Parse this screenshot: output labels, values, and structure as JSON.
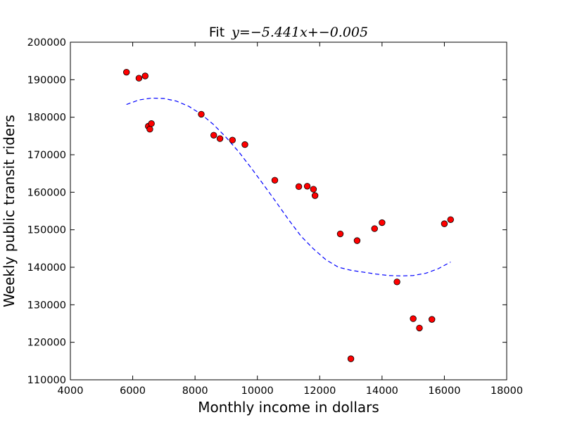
{
  "chart_data": {
    "type": "scatter",
    "title_prefix": "Fit",
    "title_math": "y=−5.441x+−0.005",
    "xlabel": "Monthly income in dollars",
    "ylabel": "Weekly public transit riders",
    "xlim": [
      4000,
      18000
    ],
    "ylim": [
      110000,
      200000
    ],
    "x_ticks": [
      4000,
      6000,
      8000,
      10000,
      12000,
      14000,
      16000,
      18000
    ],
    "y_ticks": [
      110000,
      120000,
      130000,
      140000,
      150000,
      160000,
      170000,
      180000,
      190000,
      200000
    ],
    "grid": false,
    "points": [
      {
        "x": 5800,
        "y": 192000
      },
      {
        "x": 6200,
        "y": 190400
      },
      {
        "x": 6400,
        "y": 191000
      },
      {
        "x": 6500,
        "y": 177600
      },
      {
        "x": 6550,
        "y": 176800
      },
      {
        "x": 6600,
        "y": 178300
      },
      {
        "x": 8200,
        "y": 180800
      },
      {
        "x": 8600,
        "y": 175200
      },
      {
        "x": 8800,
        "y": 174300
      },
      {
        "x": 9200,
        "y": 173900
      },
      {
        "x": 9600,
        "y": 172700
      },
      {
        "x": 10560,
        "y": 163200
      },
      {
        "x": 11330,
        "y": 161500
      },
      {
        "x": 11600,
        "y": 161600
      },
      {
        "x": 11800,
        "y": 160800
      },
      {
        "x": 11850,
        "y": 159100
      },
      {
        "x": 12660,
        "y": 148900
      },
      {
        "x": 13000,
        "y": 115600
      },
      {
        "x": 13200,
        "y": 147100
      },
      {
        "x": 13760,
        "y": 150300
      },
      {
        "x": 14000,
        "y": 151900
      },
      {
        "x": 14480,
        "y": 136100
      },
      {
        "x": 15000,
        "y": 126300
      },
      {
        "x": 15200,
        "y": 123800
      },
      {
        "x": 15600,
        "y": 126100
      },
      {
        "x": 16000,
        "y": 151600
      },
      {
        "x": 16200,
        "y": 152700
      }
    ],
    "fit": {
      "x": [
        5800,
        6200,
        6600,
        7000,
        7400,
        7800,
        8200,
        8600,
        9000,
        9400,
        9800,
        10200,
        10600,
        11000,
        11400,
        11800,
        12200,
        12600,
        13000,
        13400,
        13800,
        14200,
        14600,
        15000,
        15400,
        15800,
        16200
      ],
      "y": [
        183400,
        184600,
        185100,
        185000,
        184300,
        182900,
        180800,
        178000,
        174600,
        170800,
        166500,
        162000,
        157400,
        152700,
        148300,
        144900,
        142000,
        140000,
        139200,
        138700,
        138200,
        137800,
        137700,
        137800,
        138400,
        139600,
        141400
      ]
    },
    "colors": {
      "points": "#ff0000",
      "point_edge": "#000000",
      "fit_line": "#0000ff"
    }
  }
}
